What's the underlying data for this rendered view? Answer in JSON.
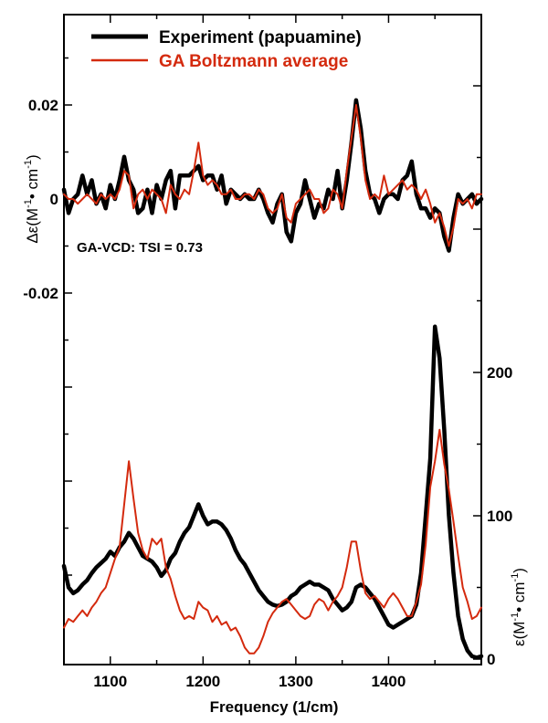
{
  "chart_data": {
    "type": "line",
    "xlabel": "Frequency (1/cm)",
    "xlim": [
      1050,
      1500
    ],
    "x_ticks": [
      "1100",
      "1200",
      "1300",
      "1400"
    ],
    "annotation": "GA-VCD: TSI = 0.73",
    "colors": {
      "experiment": "#000000",
      "ga": "#d42a0e"
    },
    "legend": {
      "placement": "top",
      "entries": [
        "Experiment (papuamine)",
        "GA Boltzmann average"
      ]
    },
    "panels": [
      {
        "name": "VCD",
        "ylabel_main": "Δε(M",
        "ylabel_sup1": "-1",
        "ylabel_mid": "• cm",
        "ylabel_sup2": "-1",
        "ylabel_end": ")",
        "ylim": [
          -0.02,
          0.03
        ],
        "y_ticks": [
          "0.02",
          "0",
          "-0.02"
        ],
        "series": [
          {
            "name": "Experiment (papuamine)",
            "x": [
              1050,
              1055,
              1060,
              1065,
              1070,
              1075,
              1080,
              1085,
              1090,
              1095,
              1100,
              1105,
              1110,
              1115,
              1120,
              1125,
              1130,
              1135,
              1140,
              1145,
              1150,
              1155,
              1160,
              1165,
              1170,
              1175,
              1180,
              1185,
              1190,
              1195,
              1200,
              1205,
              1210,
              1215,
              1220,
              1225,
              1230,
              1235,
              1240,
              1245,
              1250,
              1255,
              1260,
              1265,
              1270,
              1275,
              1280,
              1285,
              1290,
              1295,
              1300,
              1305,
              1310,
              1315,
              1320,
              1325,
              1330,
              1335,
              1340,
              1345,
              1350,
              1355,
              1360,
              1365,
              1370,
              1375,
              1380,
              1385,
              1390,
              1395,
              1400,
              1405,
              1410,
              1415,
              1420,
              1425,
              1430,
              1435,
              1440,
              1445,
              1450,
              1455,
              1460,
              1465,
              1470,
              1475,
              1480,
              1485,
              1490,
              1495,
              1500
            ],
            "values": [
              0.002,
              -0.003,
              0.0,
              0.001,
              0.005,
              0.001,
              0.004,
              -0.001,
              0.001,
              -0.002,
              0.003,
              0.0,
              0.004,
              0.009,
              0.004,
              0.002,
              -0.003,
              -0.002,
              0.002,
              -0.003,
              0.003,
              0.0,
              0.004,
              0.006,
              -0.002,
              0.005,
              0.005,
              0.005,
              0.006,
              0.007,
              0.004,
              0.005,
              0.005,
              0.002,
              0.005,
              -0.001,
              0.002,
              0.001,
              0.0,
              0.001,
              0.0,
              0.0,
              0.002,
              0.0,
              -0.003,
              -0.005,
              -0.001,
              0.001,
              -0.007,
              -0.009,
              -0.003,
              -0.001,
              0.004,
              0.0,
              -0.004,
              -0.001,
              -0.002,
              0.002,
              0.0,
              0.006,
              -0.002,
              0.004,
              0.012,
              0.021,
              0.015,
              0.006,
              0.001,
              0.0,
              -0.003,
              0.0,
              0.001,
              0.001,
              0.0,
              0.004,
              0.005,
              0.008,
              0.001,
              -0.002,
              -0.002,
              -0.004,
              -0.002,
              -0.003,
              -0.008,
              -0.011,
              -0.004,
              0.001,
              -0.001,
              0.0,
              0.001,
              -0.001,
              0.0
            ]
          },
          {
            "name": "GA Boltzmann average",
            "x": [
              1050,
              1055,
              1060,
              1065,
              1070,
              1075,
              1080,
              1085,
              1090,
              1095,
              1100,
              1105,
              1110,
              1115,
              1120,
              1125,
              1130,
              1135,
              1140,
              1145,
              1150,
              1155,
              1160,
              1165,
              1170,
              1175,
              1180,
              1185,
              1190,
              1195,
              1200,
              1205,
              1210,
              1215,
              1220,
              1225,
              1230,
              1235,
              1240,
              1245,
              1250,
              1255,
              1260,
              1265,
              1270,
              1275,
              1280,
              1285,
              1290,
              1295,
              1300,
              1305,
              1310,
              1315,
              1320,
              1325,
              1330,
              1335,
              1340,
              1345,
              1350,
              1355,
              1360,
              1365,
              1370,
              1375,
              1380,
              1385,
              1390,
              1395,
              1400,
              1405,
              1410,
              1415,
              1420,
              1425,
              1430,
              1435,
              1440,
              1445,
              1450,
              1455,
              1460,
              1465,
              1470,
              1475,
              1480,
              1485,
              1490,
              1495,
              1500
            ],
            "values": [
              0.001,
              0.0,
              0.0,
              -0.001,
              0.0,
              0.001,
              0.0,
              -0.001,
              0.001,
              0.0,
              0.001,
              0.0,
              0.002,
              0.006,
              0.005,
              -0.002,
              0.001,
              0.002,
              0.0,
              0.002,
              0.001,
              0.0,
              -0.003,
              0.003,
              0.001,
              0.0,
              0.002,
              0.001,
              0.006,
              0.012,
              0.005,
              0.003,
              0.004,
              0.003,
              0.001,
              0.001,
              0.002,
              0.0,
              0.0,
              0.001,
              0.001,
              0.0,
              0.002,
              0.001,
              -0.002,
              -0.003,
              -0.002,
              0.001,
              -0.004,
              -0.005,
              -0.001,
              0.0,
              0.001,
              0.002,
              0.0,
              0.0,
              -0.003,
              -0.002,
              0.002,
              0.001,
              -0.002,
              0.006,
              0.013,
              0.02,
              0.013,
              0.004,
              0.0,
              0.001,
              0.0,
              0.005,
              0.001,
              0.002,
              0.003,
              0.004,
              0.002,
              0.003,
              0.002,
              0.0,
              0.002,
              -0.001,
              -0.005,
              -0.003,
              -0.006,
              -0.01,
              -0.006,
              0.0,
              -0.001,
              0.0,
              -0.002,
              0.001,
              0.001
            ]
          }
        ]
      },
      {
        "name": "IR",
        "ylabel_main": "ε(M",
        "ylabel_sup1": "-1",
        "ylabel_mid": "• cm",
        "ylabel_sup2": "-1",
        "ylabel_end": ")",
        "ylim": [
          0,
          200
        ],
        "y_ticks": [
          "200",
          "100",
          "0"
        ],
        "series": [
          {
            "name": "Experiment (papuamine)",
            "x": [
              1050,
              1055,
              1060,
              1065,
              1070,
              1075,
              1080,
              1085,
              1090,
              1095,
              1100,
              1105,
              1110,
              1115,
              1120,
              1125,
              1130,
              1135,
              1140,
              1145,
              1150,
              1155,
              1160,
              1165,
              1170,
              1175,
              1180,
              1185,
              1190,
              1195,
              1200,
              1205,
              1210,
              1215,
              1220,
              1225,
              1230,
              1235,
              1240,
              1245,
              1250,
              1255,
              1260,
              1265,
              1270,
              1275,
              1280,
              1285,
              1290,
              1295,
              1300,
              1305,
              1310,
              1315,
              1320,
              1325,
              1330,
              1335,
              1340,
              1345,
              1350,
              1355,
              1360,
              1365,
              1370,
              1375,
              1380,
              1385,
              1390,
              1395,
              1400,
              1405,
              1410,
              1415,
              1420,
              1425,
              1430,
              1435,
              1440,
              1445,
              1450,
              1455,
              1460,
              1465,
              1470,
              1475,
              1480,
              1485,
              1490,
              1495,
              1500
            ],
            "values": [
              65,
              50,
              46,
              48,
              52,
              55,
              60,
              64,
              67,
              70,
              75,
              72,
              78,
              82,
              88,
              84,
              78,
              72,
              70,
              68,
              64,
              58,
              62,
              70,
              74,
              82,
              88,
              92,
              100,
              108,
              100,
              94,
              96,
              96,
              94,
              90,
              84,
              76,
              70,
              66,
              60,
              54,
              48,
              44,
              40,
              38,
              37,
              38,
              40,
              44,
              46,
              50,
              52,
              54,
              52,
              52,
              50,
              48,
              42,
              38,
              34,
              36,
              40,
              50,
              52,
              50,
              46,
              42,
              36,
              30,
              24,
              22,
              24,
              26,
              28,
              30,
              38,
              60,
              100,
              140,
              232,
              210,
              160,
              100,
              60,
              30,
              14,
              6,
              2,
              1,
              2
            ]
          },
          {
            "name": "GA Boltzmann average",
            "x": [
              1050,
              1055,
              1060,
              1065,
              1070,
              1075,
              1080,
              1085,
              1090,
              1095,
              1100,
              1105,
              1110,
              1115,
              1120,
              1125,
              1130,
              1135,
              1140,
              1145,
              1150,
              1155,
              1160,
              1165,
              1170,
              1175,
              1180,
              1185,
              1190,
              1195,
              1200,
              1205,
              1210,
              1215,
              1220,
              1225,
              1230,
              1235,
              1240,
              1245,
              1250,
              1255,
              1260,
              1265,
              1270,
              1275,
              1280,
              1285,
              1290,
              1295,
              1300,
              1305,
              1310,
              1315,
              1320,
              1325,
              1330,
              1335,
              1340,
              1345,
              1350,
              1355,
              1360,
              1365,
              1370,
              1375,
              1380,
              1385,
              1390,
              1395,
              1400,
              1405,
              1410,
              1415,
              1420,
              1425,
              1430,
              1435,
              1440,
              1445,
              1450,
              1455,
              1460,
              1465,
              1470,
              1475,
              1480,
              1485,
              1490,
              1495,
              1500
            ],
            "values": [
              22,
              28,
              26,
              30,
              34,
              30,
              36,
              40,
              46,
              50,
              60,
              70,
              78,
              108,
              138,
              112,
              88,
              76,
              70,
              84,
              80,
              84,
              64,
              56,
              44,
              34,
              28,
              30,
              28,
              40,
              36,
              34,
              26,
              30,
              24,
              26,
              20,
              22,
              16,
              8,
              4,
              4,
              8,
              16,
              26,
              32,
              36,
              40,
              42,
              38,
              34,
              30,
              28,
              30,
              38,
              42,
              40,
              34,
              40,
              44,
              50,
              64,
              82,
              82,
              62,
              46,
              42,
              44,
              40,
              36,
              42,
              46,
              42,
              36,
              30,
              30,
              40,
              52,
              80,
              120,
              138,
              160,
              136,
              118,
              96,
              72,
              50,
              40,
              28,
              30,
              36
            ]
          }
        ]
      }
    ]
  }
}
